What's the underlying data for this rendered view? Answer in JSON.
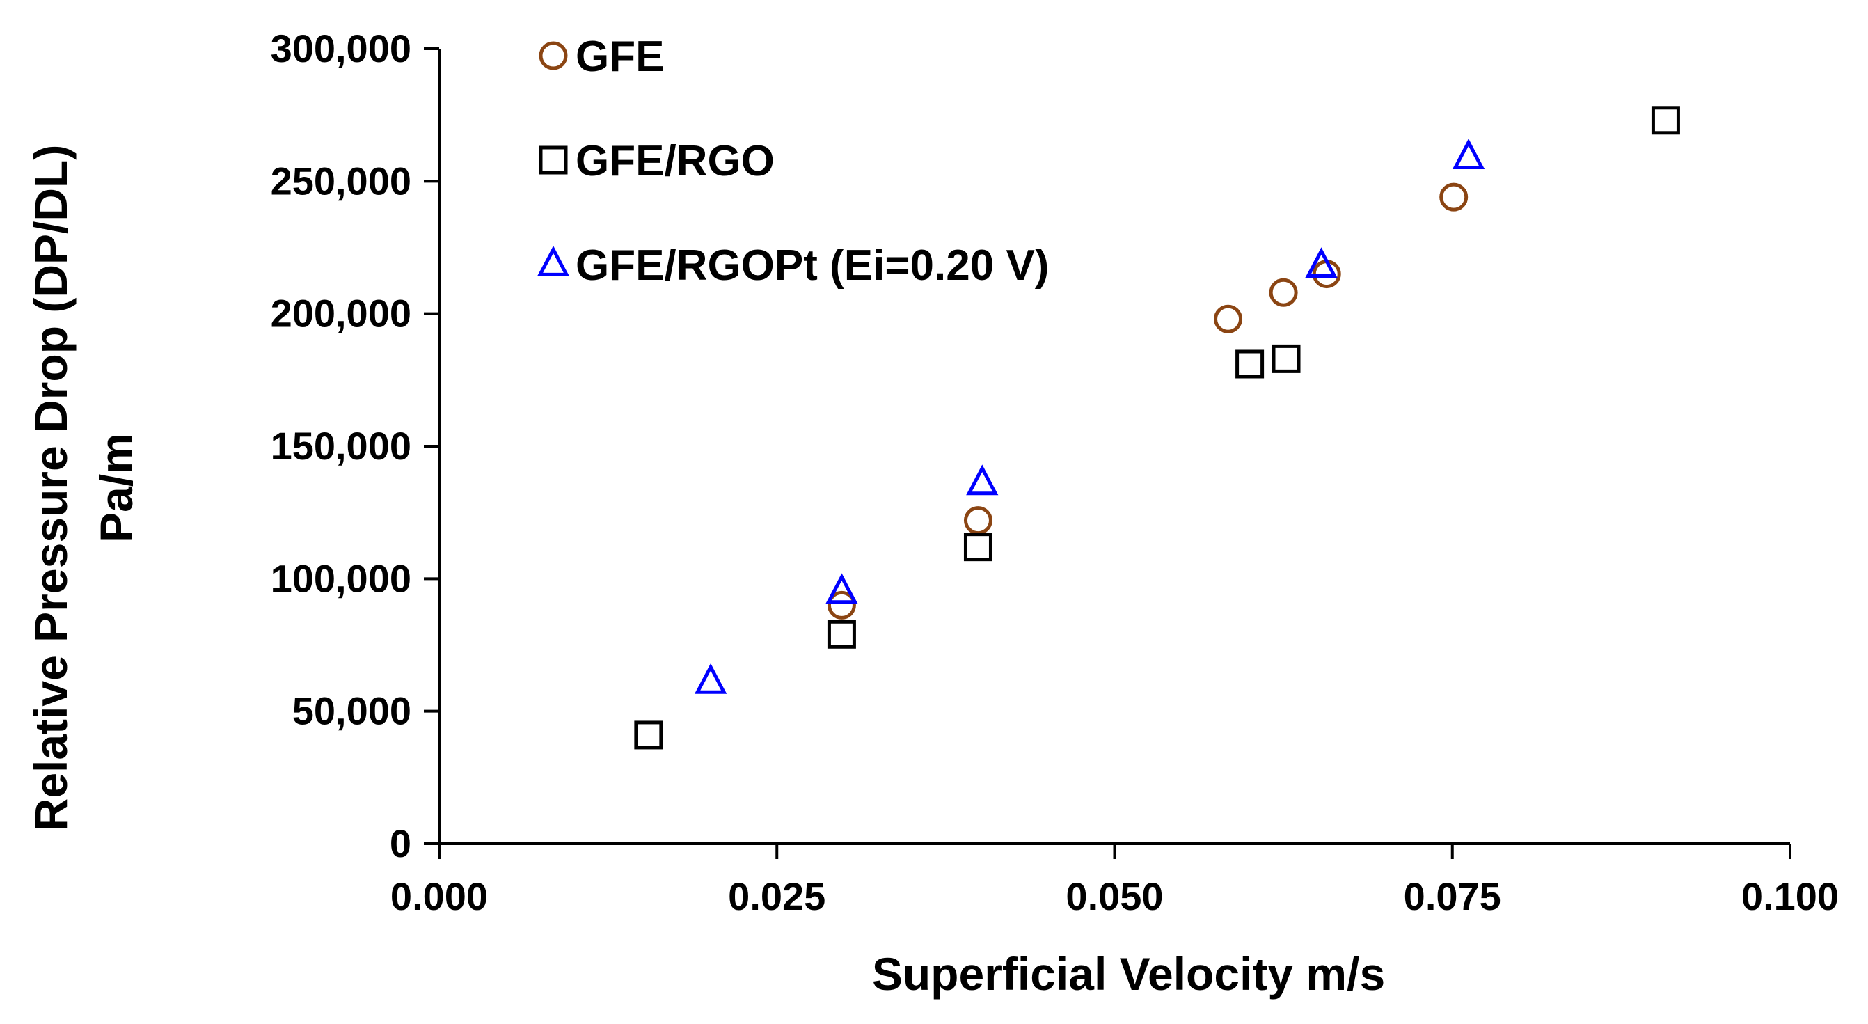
{
  "chart_data": {
    "type": "scatter",
    "title": "",
    "xlabel": "Superficial Velocity m/s",
    "ylabel": [
      "Relative Pressure Drop (DP/DL)",
      "Pa/m"
    ],
    "xlim": [
      0,
      0.1
    ],
    "ylim": [
      0,
      300000
    ],
    "x_ticks": [
      0,
      0.025,
      0.05,
      0.075,
      0.1
    ],
    "x_tick_labels": [
      "0.000",
      "0.025",
      "0.050",
      "0.075",
      "0.100"
    ],
    "y_ticks": [
      0,
      50000,
      100000,
      150000,
      200000,
      250000,
      300000
    ],
    "y_tick_labels": [
      "0",
      "50,000",
      "100,000",
      "150,000",
      "200,000",
      "250,000",
      "300,000"
    ],
    "grid": false,
    "legend_position": "top-left",
    "series": [
      {
        "name": "GFE",
        "marker": "circle",
        "color": "#8B4513",
        "points": [
          [
            0.0298,
            90000
          ],
          [
            0.0399,
            122000
          ],
          [
            0.0584,
            198000
          ],
          [
            0.0625,
            208000
          ],
          [
            0.0657,
            215000
          ],
          [
            0.0751,
            244000
          ]
        ]
      },
      {
        "name": "GFE/RGO",
        "marker": "square",
        "color": "#000000",
        "points": [
          [
            0.0155,
            41000
          ],
          [
            0.0298,
            79000
          ],
          [
            0.0399,
            112000
          ],
          [
            0.06,
            181000
          ],
          [
            0.0627,
            183000
          ],
          [
            0.0908,
            273000
          ]
        ]
      },
      {
        "name": "GFE/RGOPt (Ei=0.20 V)",
        "marker": "triangle",
        "color": "#0000FF",
        "points": [
          [
            0.0201,
            61000
          ],
          [
            0.0298,
            95000
          ],
          [
            0.0402,
            136000
          ],
          [
            0.0653,
            218000
          ],
          [
            0.0762,
            259000
          ]
        ]
      }
    ]
  }
}
